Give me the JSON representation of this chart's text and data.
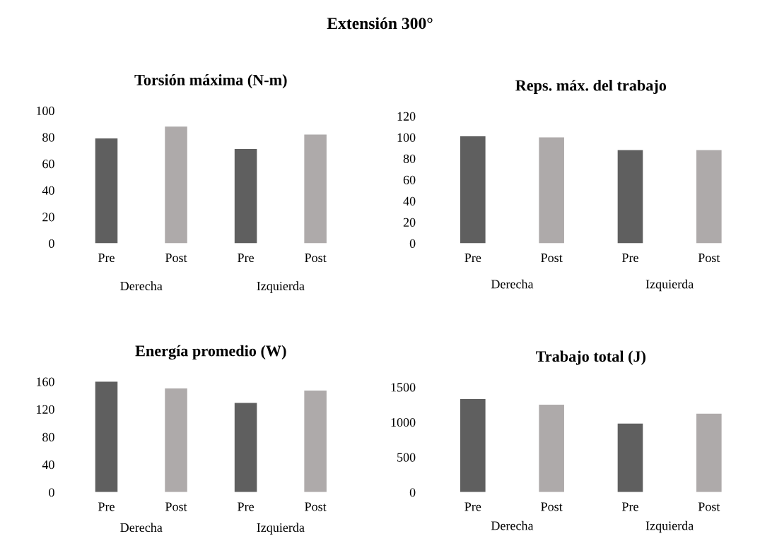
{
  "chart_data": [
    {
      "type": "other",
      "title": "Extensión 300°"
    },
    {
      "type": "bar",
      "title": "Torsión máxima (N-m)",
      "categories": [
        "Pre",
        "Post",
        "Pre",
        "Post"
      ],
      "values": [
        79,
        88,
        71,
        82
      ],
      "colors": [
        "#5f5f5f",
        "#aeaaaa",
        "#5f5f5f",
        "#aeaaaa"
      ],
      "ylim": [
        0,
        100
      ],
      "yticks": [
        0,
        20,
        40,
        60,
        80,
        100
      ],
      "annotations": [
        "Derecha",
        "Izquierda"
      ]
    },
    {
      "type": "bar",
      "title": "Reps. máx. del trabajo",
      "categories": [
        "Pre",
        "Post",
        "Pre",
        "Post"
      ],
      "values": [
        101,
        100,
        88,
        88
      ],
      "colors": [
        "#5f5f5f",
        "#aeaaaa",
        "#5f5f5f",
        "#aeaaaa"
      ],
      "ylim": [
        0,
        120
      ],
      "yticks": [
        0,
        20,
        40,
        60,
        80,
        100,
        120
      ],
      "annotations": [
        "Derecha",
        "Izquierda"
      ]
    },
    {
      "type": "bar",
      "title": "Energía promedio (W)",
      "categories": [
        "Pre",
        "Post",
        "Pre",
        "Post"
      ],
      "values": [
        160,
        150,
        129,
        147
      ],
      "colors": [
        "#5f5f5f",
        "#aeaaaa",
        "#5f5f5f",
        "#aeaaaa"
      ],
      "ylim": [
        0,
        160
      ],
      "yticks": [
        0,
        40,
        80,
        120,
        160
      ],
      "annotations": [
        "Derecha",
        "Izquierda"
      ]
    },
    {
      "type": "bar",
      "title": "Trabajo total (J)",
      "categories": [
        "Pre",
        "Post",
        "Pre",
        "Post"
      ],
      "values": [
        1330,
        1250,
        980,
        1120
      ],
      "colors": [
        "#5f5f5f",
        "#aeaaaa",
        "#5f5f5f",
        "#aeaaaa"
      ],
      "ylim": [
        0,
        1500
      ],
      "yticks": [
        0,
        500,
        1000,
        1500
      ],
      "annotations": [
        "Derecha",
        "Izquierda"
      ]
    }
  ]
}
